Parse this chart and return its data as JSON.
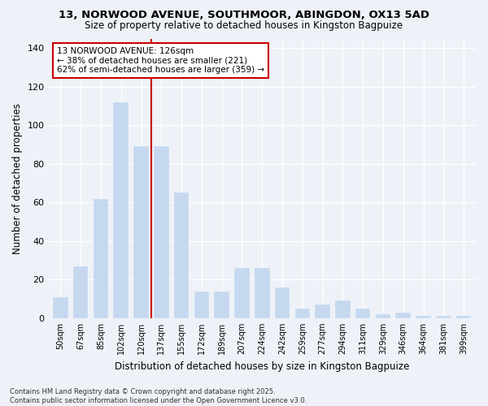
{
  "title_line1": "13, NORWOOD AVENUE, SOUTHMOOR, ABINGDON, OX13 5AD",
  "title_line2": "Size of property relative to detached houses in Kingston Bagpuize",
  "xlabel": "Distribution of detached houses by size in Kingston Bagpuize",
  "ylabel": "Number of detached properties",
  "categories": [
    "50sqm",
    "67sqm",
    "85sqm",
    "102sqm",
    "120sqm",
    "137sqm",
    "155sqm",
    "172sqm",
    "189sqm",
    "207sqm",
    "224sqm",
    "242sqm",
    "259sqm",
    "277sqm",
    "294sqm",
    "311sqm",
    "329sqm",
    "346sqm",
    "364sqm",
    "381sqm",
    "399sqm"
  ],
  "values": [
    11,
    27,
    62,
    112,
    89,
    89,
    65,
    14,
    14,
    26,
    26,
    16,
    5,
    7,
    9,
    5,
    2,
    3,
    1,
    1,
    1
  ],
  "bar_color": "#c5d8ef",
  "highlight_color": "#cc0000",
  "vline_x": 4.5,
  "annotation_text": "13 NORWOOD AVENUE: 126sqm\n← 38% of detached houses are smaller (221)\n62% of semi-detached houses are larger (359) →",
  "annotation_box_color": "#ffffff",
  "annotation_box_edge": "#cc0000",
  "ylim": [
    0,
    145
  ],
  "yticks": [
    0,
    20,
    40,
    60,
    80,
    100,
    120,
    140
  ],
  "footnote_line1": "Contains HM Land Registry data © Crown copyright and database right 2025.",
  "footnote_line2": "Contains public sector information licensed under the Open Government Licence v3.0.",
  "bg_color": "#eef2f8"
}
